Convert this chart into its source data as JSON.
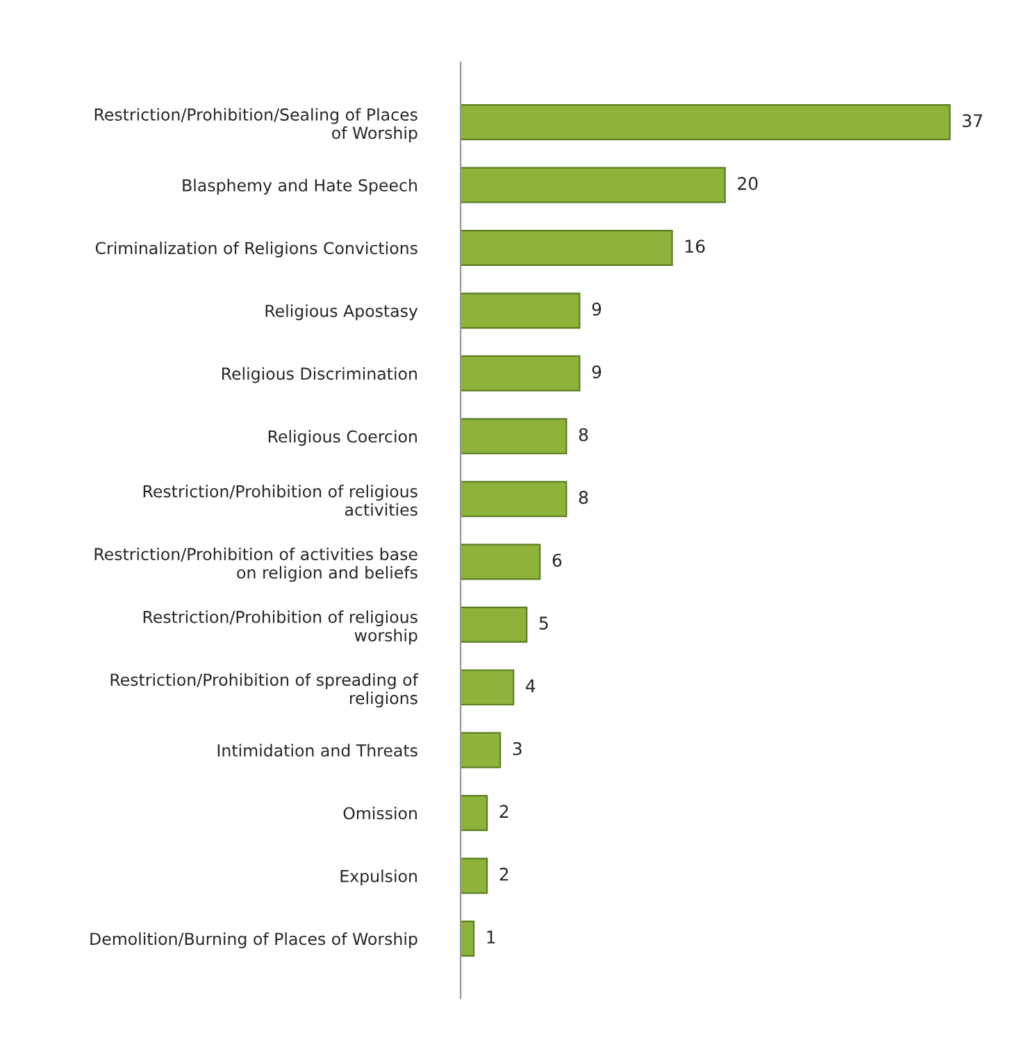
{
  "chart_data": {
    "type": "bar",
    "orientation": "horizontal",
    "data_labels": true,
    "grid": false,
    "color": "#8db33a",
    "categories": [
      "Restriction/Prohibition/Sealing of Places\nof Worship",
      "Blasphemy and Hate Speech",
      "Criminalization of Religions Convictions",
      "Religious Apostasy",
      "Religious Discrimination",
      "Religious Coercion",
      "Restriction/Prohibition of religious\nactivities",
      "Restriction/Prohibition of activities base\non religion and beliefs",
      "Restriction/Prohibition of religious\nworship",
      "Restriction/Prohibition of spreading of\nreligions",
      "Intimidation and Threats",
      "Omission",
      "Expulsion",
      "Demolition/Burning of Places of Worship"
    ],
    "values": [
      37,
      20,
      16,
      9,
      9,
      8,
      8,
      6,
      5,
      4,
      3,
      2,
      2,
      1
    ]
  }
}
